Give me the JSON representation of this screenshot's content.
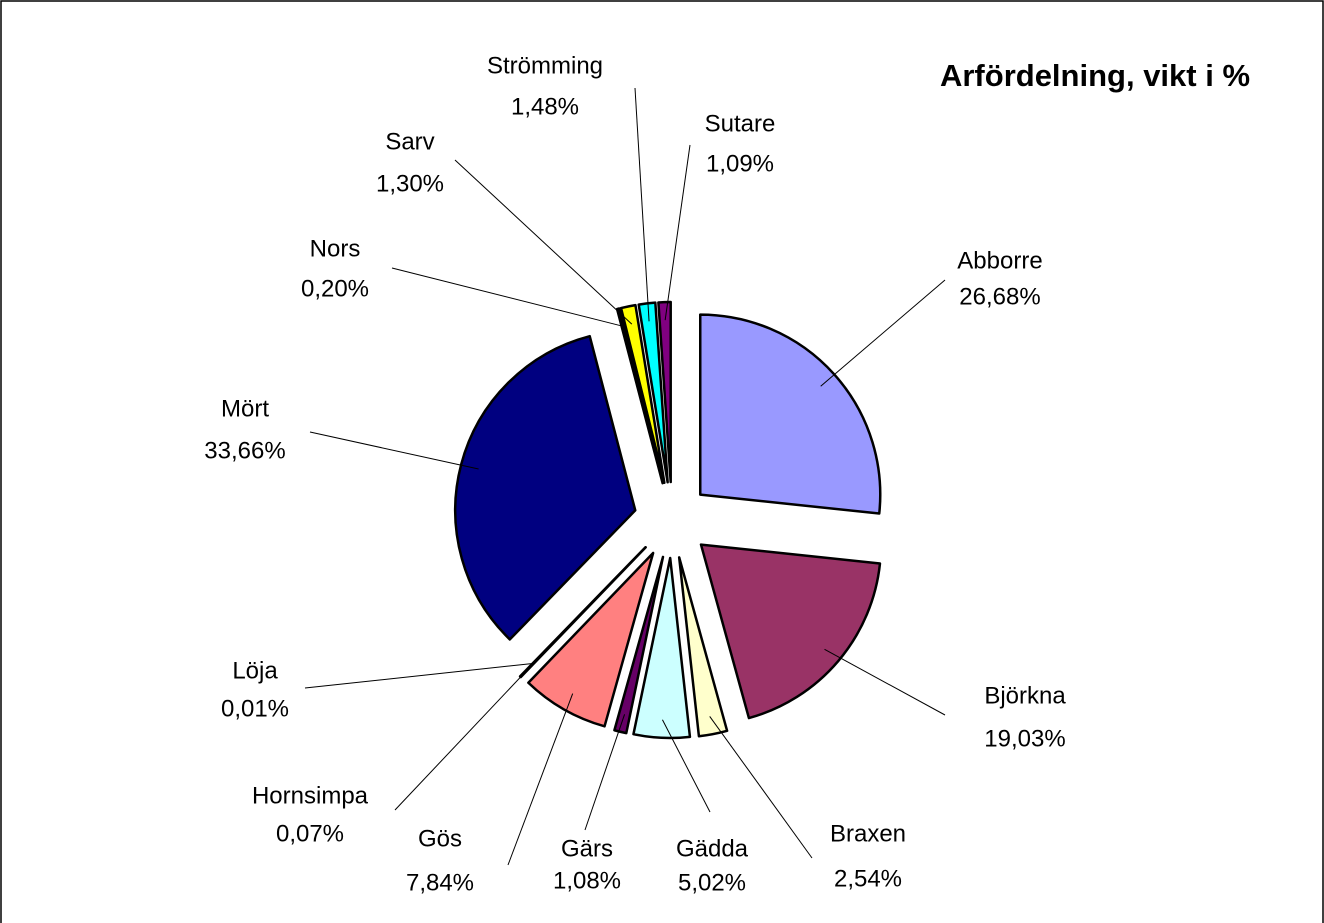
{
  "chart_data": {
    "type": "pie",
    "title": "Arfördelning, vikt i %",
    "categories": [
      "Abborre",
      "Björkna",
      "Braxen",
      "Gädda",
      "Gärs",
      "Gös",
      "Hornsimpa",
      "Löja",
      "Mört",
      "Nors",
      "Sarv",
      "Strömming",
      "Sutare"
    ],
    "values": [
      26.68,
      19.03,
      2.54,
      5.02,
      1.08,
      7.84,
      0.07,
      0.01,
      33.66,
      0.2,
      1.3,
      1.48,
      1.09
    ],
    "value_labels": [
      "26,68%",
      "19,03%",
      "2,54%",
      "5,02%",
      "1,08%",
      "7,84%",
      "0,07%",
      "0,01%",
      "33,66%",
      "0,20%",
      "1,30%",
      "1,48%",
      "1,09%"
    ],
    "colors": [
      "#9999ff",
      "#993366",
      "#ffffcc",
      "#ccffff",
      "#660066",
      "#ff8080",
      "#0066cc",
      "#ccccff",
      "#000080",
      "#330066",
      "#ffff00",
      "#00ffff",
      "#800080"
    ]
  }
}
